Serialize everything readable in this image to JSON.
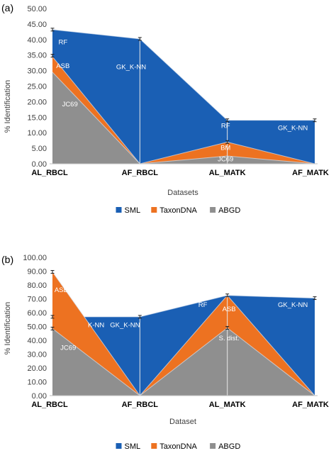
{
  "chart_data": [
    {
      "type": "area",
      "panel_label": "(a)",
      "xlabel": "Datasets",
      "ylabel": "% Identification",
      "ylim": [
        0,
        50
      ],
      "ytick_step": 5,
      "ytick_labels": [
        "0.00",
        "5.00",
        "10.00",
        "15.00",
        "20.00",
        "25.00",
        "30.00",
        "35.00",
        "40.00",
        "45.00",
        "50.00"
      ],
      "categories": [
        "AL_RBCL",
        "AF_RBCL",
        "AL_MATK",
        "AF_MATK"
      ],
      "series": [
        {
          "name": "ABGD",
          "values": [
            29.5,
            0,
            2.5,
            0
          ]
        },
        {
          "name": "TaxonDNA",
          "values": [
            34.5,
            0,
            7.0,
            0
          ]
        },
        {
          "name": "SML",
          "values": [
            43.2,
            40.2,
            14.0,
            14.0
          ]
        }
      ],
      "error_bar_positions": [
        [
          0,
          43.2
        ],
        [
          0,
          34.8
        ],
        [
          1,
          40.2
        ],
        [
          2,
          14.0
        ],
        [
          2,
          7.0
        ],
        [
          3,
          14.0
        ]
      ],
      "annotations": [
        {
          "text": "RF",
          "cat": 0.12,
          "y": 38.5
        },
        {
          "text": "ASB",
          "cat": 0.12,
          "y": 30.8
        },
        {
          "text": "JC69",
          "cat": 0.2,
          "y": 18.5
        },
        {
          "text": "GK_K-NN",
          "cat": 0.9,
          "y": 30.5
        },
        {
          "text": "RF",
          "cat": 1.98,
          "y": 11.5
        },
        {
          "text": "BM",
          "cat": 1.98,
          "y": 4.5
        },
        {
          "text": "JC69",
          "cat": 1.98,
          "y": 0.8
        },
        {
          "text": "GK_K-NN",
          "cat": 2.75,
          "y": 10.8
        }
      ],
      "legend": [
        "SML",
        "TaxonDNA",
        "ABGD"
      ],
      "legend_position": "bottom",
      "colors": {
        "SML": "#1a5fb4",
        "TaxonDNA": "#ed7221",
        "ABGD": "#8f8f8f"
      }
    },
    {
      "type": "area",
      "panel_label": "(b)",
      "xlabel": "Dataset",
      "ylabel": "% Identification",
      "ylim": [
        0,
        100
      ],
      "ytick_step": 10,
      "ytick_labels": [
        "0.00",
        "10.00",
        "20.00",
        "30.00",
        "40.00",
        "50.00",
        "60.00",
        "70.00",
        "80.00",
        "90.00",
        "100.00"
      ],
      "categories": [
        "AL_RBCL",
        "AF_RBCL",
        "AL_MATK",
        "AF_MATK"
      ],
      "series": [
        {
          "name": "ABGD",
          "values": [
            48.5,
            0,
            49.0,
            0
          ]
        },
        {
          "name": "TaxonDNA",
          "values": [
            89.5,
            0,
            72.5,
            0
          ]
        },
        {
          "name": "SML",
          "values": [
            57.0,
            57.0,
            72.5,
            70.5
          ]
        }
      ],
      "error_bar_positions": [
        [
          0,
          89.5
        ],
        [
          0,
          57.0
        ],
        [
          0,
          48.5
        ],
        [
          1,
          57.0
        ],
        [
          2,
          72.5
        ],
        [
          2,
          49.0
        ],
        [
          3,
          70.5
        ]
      ],
      "annotations": [
        {
          "text": "ASB",
          "cat": 0.1,
          "y": 75.0
        },
        {
          "text": "K-NN",
          "cat": 0.5,
          "y": 49.5
        },
        {
          "text": "GK_K-NN",
          "cat": 0.83,
          "y": 49.5
        },
        {
          "text": "JC69",
          "cat": 0.18,
          "y": 33.0
        },
        {
          "text": "RF",
          "cat": 1.72,
          "y": 64.0
        },
        {
          "text": "ASB",
          "cat": 2.02,
          "y": 61.0
        },
        {
          "text": "S. dist.",
          "cat": 2.02,
          "y": 40.0
        },
        {
          "text": "GK_K-NN",
          "cat": 2.75,
          "y": 64.0
        }
      ],
      "legend": [
        "SML",
        "TaxonDNA",
        "ABGD"
      ],
      "legend_position": "bottom",
      "colors": {
        "SML": "#1a5fb4",
        "TaxonDNA": "#ed7221",
        "ABGD": "#8f8f8f"
      }
    }
  ]
}
